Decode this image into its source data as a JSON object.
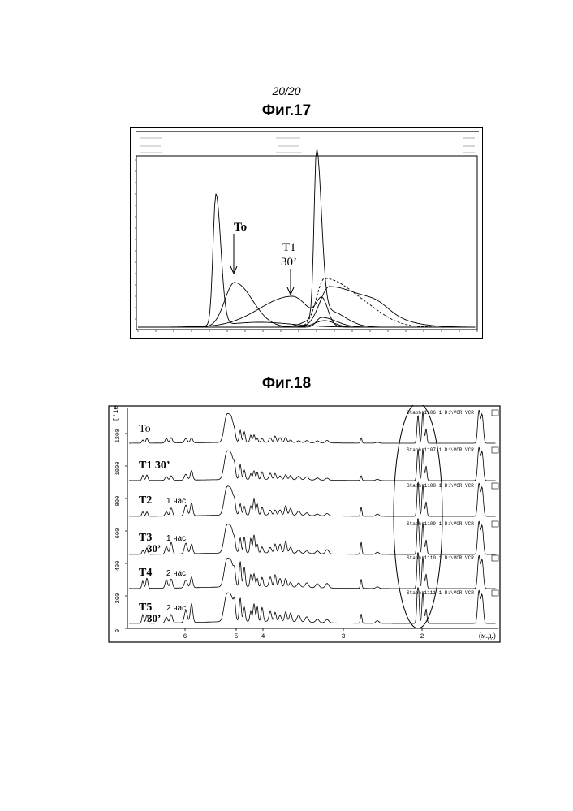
{
  "page": {
    "number": "20/20"
  },
  "figures": [
    {
      "id": "fig17",
      "title": "Фиг.17"
    },
    {
      "id": "fig18",
      "title": "Фиг.18"
    }
  ],
  "chart_data": [
    {
      "type": "line",
      "title": "Фиг.17",
      "annotations": [
        "To",
        "T1",
        "30’"
      ],
      "series": [
        {
          "name": "To"
        },
        {
          "name": "T1 30’"
        }
      ]
    },
    {
      "type": "line",
      "title": "Фиг.18",
      "x_unit": "(м.д.)",
      "x_ticks": [
        "6",
        "5",
        "4",
        "3",
        "2"
      ],
      "y_ticks": [
        "0",
        "200",
        "400",
        "600",
        "800",
        "1000",
        "1200"
      ],
      "y_unit": "[*1e3]",
      "traces": [
        {
          "name_main": "To",
          "name_sub": "",
          "name_sub2": "",
          "tag": "Staph  1106  1  D:\\VCR  VCR"
        },
        {
          "name_main": "T1 30’",
          "name_sub": "",
          "name_sub2": "",
          "tag": "Staph  1107  1  D:\\VCR  VCR"
        },
        {
          "name_main": "T2",
          "name_sub": "1 час",
          "name_sub2": "",
          "tag": "Staph  1108  1  D:\\VCR  VCR"
        },
        {
          "name_main": "T3",
          "name_sub": "1 час",
          "name_sub2": "30’",
          "tag": "Staph  1109  1  D:\\VCR  VCR"
        },
        {
          "name_main": "T4",
          "name_sub": "2 час",
          "name_sub2": "",
          "tag": "Staph  1110  1  D:\\VCR  VCR"
        },
        {
          "name_main": "T5",
          "name_sub": "2 час",
          "name_sub2": "30’",
          "tag": "Staph  1111  1  D:\\VCR  VCR"
        }
      ]
    }
  ]
}
